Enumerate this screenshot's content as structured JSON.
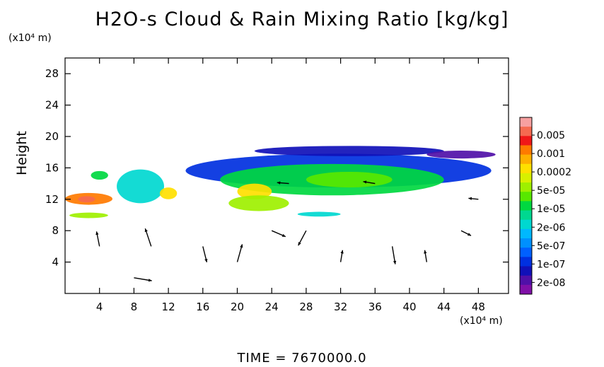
{
  "chart_data": {
    "type": "heatmap",
    "title": "H2O-s Cloud & Rain Mixing Ratio [kg/kg]",
    "ylabel": "Height",
    "y_unit_label": "(x10⁴ m)",
    "x_unit_label": "(x10⁴ m)",
    "x_ticks": [
      4,
      8,
      12,
      16,
      20,
      24,
      28,
      32,
      36,
      40,
      44,
      48
    ],
    "y_ticks": [
      4,
      8,
      12,
      16,
      20,
      24,
      28
    ],
    "xlim": [
      0,
      51.5
    ],
    "ylim": [
      0,
      30
    ],
    "footer": "TIME  =  7670000.0",
    "colorbar": {
      "labels": [
        "0.005",
        "0.001",
        "0.0002",
        "5e-05",
        "1e-05",
        "2e-06",
        "5e-07",
        "1e-07",
        "2e-08"
      ],
      "colors": [
        "#f7a0a0",
        "#f56a50",
        "#f01818",
        "#ff7a00",
        "#ffb000",
        "#ffe000",
        "#d8f000",
        "#9ef000",
        "#58e800",
        "#00d840",
        "#00d890",
        "#00d8d0",
        "#00b8ff",
        "#0090ff",
        "#0060ff",
        "#0030e0",
        "#1010b8",
        "#5010a8",
        "#8010a8"
      ]
    },
    "cloud_regions": [
      {
        "x0": 0.0,
        "x1": 5.5,
        "y0": 11.3,
        "y1": 12.8,
        "level": 15
      },
      {
        "x0": 1.5,
        "x1": 3.5,
        "y0": 11.6,
        "y1": 12.4,
        "level": 17
      },
      {
        "x0": 0.5,
        "x1": 5.0,
        "y0": 9.6,
        "y1": 10.3,
        "level": 11
      },
      {
        "x0": 3.0,
        "x1": 5.0,
        "y0": 14.5,
        "y1": 15.6,
        "level": 9
      },
      {
        "x0": 6.0,
        "x1": 11.5,
        "y0": 11.5,
        "y1": 15.8,
        "level": 7
      },
      {
        "x0": 11.0,
        "x1": 13.0,
        "y0": 12.0,
        "y1": 13.5,
        "level": 13
      },
      {
        "x0": 14.0,
        "x1": 49.5,
        "y0": 13.5,
        "y1": 17.8,
        "level": 3
      },
      {
        "x0": 22.0,
        "x1": 44.0,
        "y0": 17.5,
        "y1": 18.8,
        "level": 2
      },
      {
        "x0": 42.0,
        "x1": 50.0,
        "y0": 17.2,
        "y1": 18.2,
        "level": 1
      },
      {
        "x0": 18.0,
        "x1": 44.0,
        "y0": 12.5,
        "y1": 16.5,
        "level": 9
      },
      {
        "x0": 20.0,
        "x1": 24.0,
        "y0": 12.0,
        "y1": 14.0,
        "level": 13
      },
      {
        "x0": 19.0,
        "x1": 26.0,
        "y0": 10.5,
        "y1": 12.5,
        "level": 11
      },
      {
        "x0": 28.0,
        "x1": 38.0,
        "y0": 13.5,
        "y1": 15.5,
        "level": 10
      },
      {
        "x0": 27.0,
        "x1": 32.0,
        "y0": 9.8,
        "y1": 10.4,
        "level": 7
      }
    ],
    "wind_vectors": [
      {
        "x": 4,
        "y": 6,
        "u": -0.3,
        "v": 1.5
      },
      {
        "x": 8,
        "y": 2,
        "u": 1.8,
        "v": -0.3
      },
      {
        "x": 10,
        "y": 6,
        "u": -0.6,
        "v": 1.8
      },
      {
        "x": 16,
        "y": 6,
        "u": 0.4,
        "v": -1.6
      },
      {
        "x": 20,
        "y": 4,
        "u": 0.5,
        "v": 1.8
      },
      {
        "x": 24,
        "y": 8,
        "u": 1.4,
        "v": -0.6
      },
      {
        "x": 28,
        "y": 8,
        "u": -0.8,
        "v": -1.5
      },
      {
        "x": 32,
        "y": 4,
        "u": 0.2,
        "v": 1.2
      },
      {
        "x": 38,
        "y": 6,
        "u": 0.3,
        "v": -1.8
      },
      {
        "x": 42,
        "y": 4,
        "u": -0.2,
        "v": 1.2
      },
      {
        "x": 46,
        "y": 8,
        "u": 1.0,
        "v": -0.5
      },
      {
        "x": 48,
        "y": 12,
        "u": -1.0,
        "v": 0.1
      },
      {
        "x": 36,
        "y": 14,
        "u": -1.2,
        "v": 0.2
      },
      {
        "x": 26,
        "y": 14,
        "u": -1.2,
        "v": 0.1
      }
    ]
  }
}
